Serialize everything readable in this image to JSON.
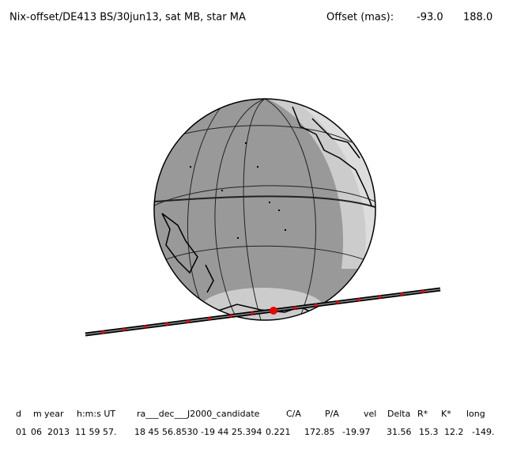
{
  "header": {
    "title": "Nix-offset/DE413 BS/30jun13, sat MB, star MA",
    "offset_label": "Offset (mas):",
    "offset_values": [
      "-93.0",
      "188.0"
    ]
  },
  "table": {
    "headers": [
      "d",
      "m",
      "year",
      "h:m:s UT",
      "ra___dec___J2000_candidate",
      "C/A",
      "P/A",
      "vel",
      "Delta",
      "R*",
      "K*",
      "long"
    ],
    "row": [
      "01",
      "06",
      "2013",
      "11 59 57.",
      "18 45 56.8530 -19 44 25.394",
      "0.221",
      "172.85",
      "-19.97",
      "31.56",
      "15.3",
      "12.2",
      "-149."
    ]
  }
}
